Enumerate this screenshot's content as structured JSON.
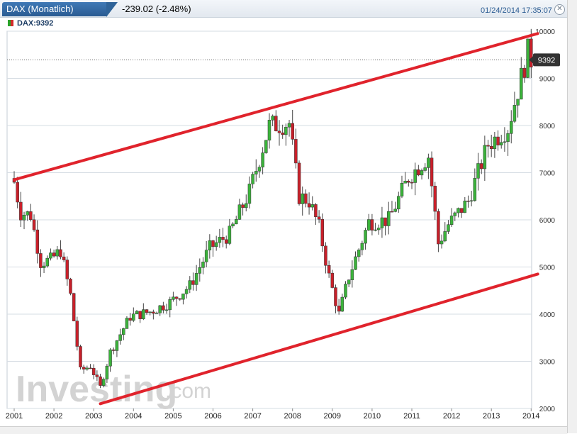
{
  "window": {
    "title": "DAX (Monatlich)",
    "change": "-239.02 (-2.48%)",
    "timestamp": "01/24/2014 17:35:07",
    "close_icon": "close-icon"
  },
  "legend": {
    "label": "DAX:9392"
  },
  "watermark": {
    "brand": "Investing",
    "suffix": ".com"
  },
  "price_tag": "9392",
  "colors": {
    "up": "#3bb33b",
    "down": "#c8202a",
    "trend": "#e0232c",
    "grid": "#d6dce3",
    "title_bar": "#2f6399"
  },
  "chart_data": {
    "type": "candlestick",
    "title": "DAX (Monatlich)",
    "ylim": [
      2000,
      10000
    ],
    "y_ticks": [
      2000,
      3000,
      4000,
      5000,
      6000,
      7000,
      8000,
      9000,
      10000
    ],
    "x_ticks": [
      "2001",
      "2002",
      "2003",
      "2004",
      "2005",
      "2006",
      "2007",
      "2008",
      "2009",
      "2010",
      "2011",
      "2012",
      "2013",
      "2014"
    ],
    "last_price": 9392,
    "close_points": [
      [
        "2001-01",
        6800
      ],
      [
        "2001-03",
        6150
      ],
      [
        "2001-06",
        6100
      ],
      [
        "2001-09",
        5100
      ],
      [
        "2001-12",
        5150
      ],
      [
        "2002-03",
        5350
      ],
      [
        "2002-06",
        4400
      ],
      [
        "2002-09",
        2800
      ],
      [
        "2002-12",
        2900
      ],
      [
        "2003-03",
        2450
      ],
      [
        "2003-06",
        3200
      ],
      [
        "2003-12",
        3950
      ],
      [
        "2004-06",
        4050
      ],
      [
        "2004-12",
        4250
      ],
      [
        "2005-06",
        4600
      ],
      [
        "2005-12",
        5400
      ],
      [
        "2006-06",
        5700
      ],
      [
        "2006-12",
        6600
      ],
      [
        "2007-06",
        8000
      ],
      [
        "2007-12",
        8050
      ],
      [
        "2008-03",
        6500
      ],
      [
        "2008-06",
        6400
      ],
      [
        "2008-09",
        5850
      ],
      [
        "2008-12",
        4800
      ],
      [
        "2009-03",
        4000
      ],
      [
        "2009-06",
        4800
      ],
      [
        "2009-12",
        5950
      ],
      [
        "2010-06",
        6000
      ],
      [
        "2010-12",
        6900
      ],
      [
        "2011-06",
        7350
      ],
      [
        "2011-09",
        5500
      ],
      [
        "2011-12",
        5900
      ],
      [
        "2012-06",
        6400
      ],
      [
        "2012-12",
        7600
      ],
      [
        "2013-06",
        7950
      ],
      [
        "2013-12",
        9550
      ],
      [
        "2014-01",
        9392
      ]
    ],
    "trendlines": [
      {
        "name": "upper",
        "from": [
          "2001-01",
          6850
        ],
        "to": [
          "2014-03",
          9950
        ]
      },
      {
        "name": "lower",
        "from": [
          "2003-03",
          2100
        ],
        "to": [
          "2014-03",
          4850
        ]
      }
    ]
  }
}
